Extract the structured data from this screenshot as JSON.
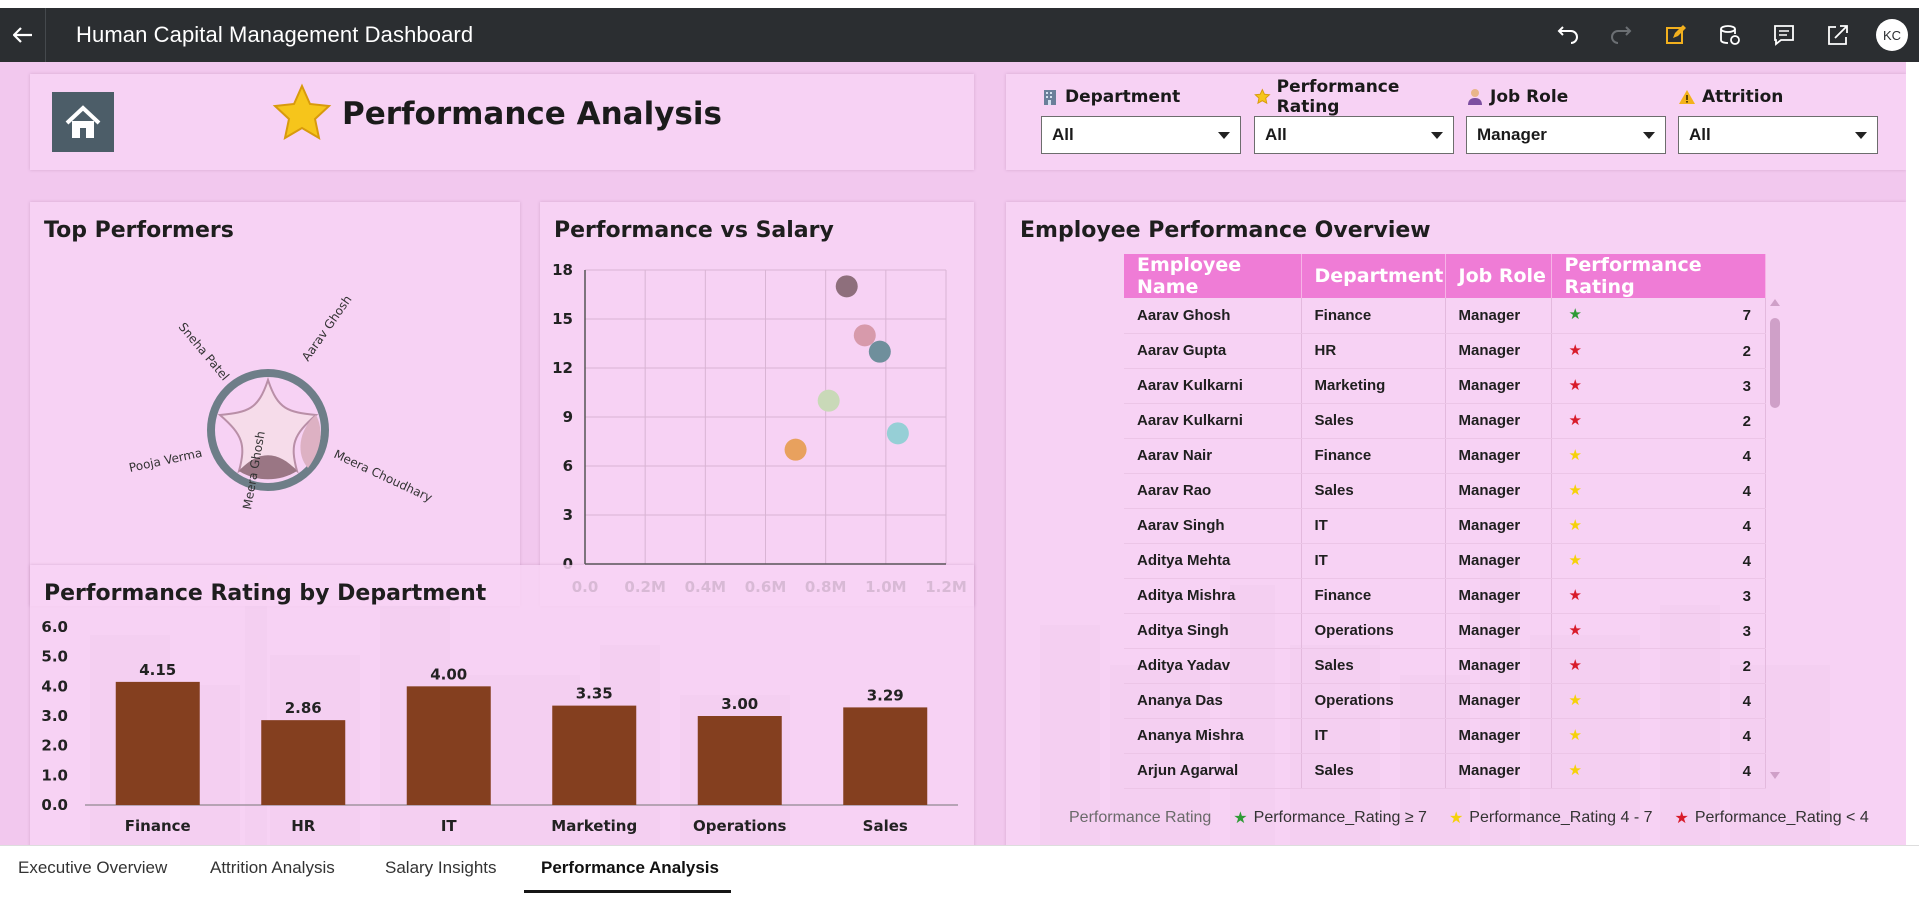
{
  "app": {
    "title": "Human Capital Management Dashboard",
    "user_initials": "KC",
    "toolbar_icons": [
      "undo-icon",
      "redo-icon",
      "edit-icon",
      "data-icon",
      "comment-icon",
      "share-icon"
    ]
  },
  "header": {
    "page_title": "Performance Analysis"
  },
  "filters": [
    {
      "label": "Department",
      "value": "All",
      "icon": "building-icon"
    },
    {
      "label": "Performance Rating",
      "value": "All",
      "icon": "star-icon"
    },
    {
      "label": "Job Role",
      "value": "Manager",
      "icon": "person-icon"
    },
    {
      "label": "Attrition",
      "value": "All",
      "icon": "warning-icon"
    }
  ],
  "top_performers": {
    "title": "Top Performers",
    "names": [
      "Aarav Ghosh",
      "Meera Choudhary",
      "Meera Ghosh",
      "Pooja Verma",
      "Sneha Patel"
    ]
  },
  "perf_vs_salary": {
    "title": "Performance vs Salary",
    "chart_data": {
      "type": "scatter",
      "title": "Performance vs Salary",
      "xlim": [
        0,
        1200000
      ],
      "ylim": [
        0,
        18
      ],
      "x_ticks": [
        "0.0",
        "0.2M",
        "0.4M",
        "0.6M",
        "0.8M",
        "1.0M",
        "1.2M"
      ],
      "y_ticks": [
        "0",
        "3",
        "6",
        "9",
        "12",
        "15",
        "18"
      ],
      "points": [
        {
          "x": 700000,
          "y": 7,
          "color": "#e8a15e"
        },
        {
          "x": 810000,
          "y": 10,
          "color": "#c9d9b8"
        },
        {
          "x": 870000,
          "y": 17,
          "color": "#8e6f7c"
        },
        {
          "x": 930000,
          "y": 14,
          "color": "#d79aab"
        },
        {
          "x": 980000,
          "y": 13,
          "color": "#6f8f9c"
        },
        {
          "x": 1040000,
          "y": 8,
          "color": "#96cfd6"
        }
      ]
    }
  },
  "dept_rating": {
    "title": "Performance Rating by Department",
    "chart_data": {
      "type": "bar",
      "title": "Performance Rating by Department",
      "categories": [
        "Finance",
        "HR",
        "IT",
        "Marketing",
        "Operations",
        "Sales"
      ],
      "values": [
        4.15,
        2.86,
        4.0,
        3.35,
        3.0,
        3.29
      ],
      "labels": [
        "4.15",
        "2.86",
        "4.00",
        "3.35",
        "3.00",
        "3.29"
      ],
      "ylim": [
        0,
        6
      ],
      "y_ticks": [
        "0.0",
        "1.0",
        "2.0",
        "3.0",
        "4.0",
        "5.0",
        "6.0"
      ],
      "color": "#843f1f"
    }
  },
  "overview": {
    "title": "Employee Performance Overview",
    "columns": [
      "Employee Name",
      "Department",
      "Job Role",
      "Performance Rating"
    ],
    "star_colors": {
      "green": "#2e9a35",
      "yellow": "#f5d10a",
      "red": "#d81b2a"
    },
    "rows": [
      {
        "name": "Aarav Ghosh",
        "dept": "Finance",
        "role": "Manager",
        "rating": "7",
        "star": "green"
      },
      {
        "name": "Aarav Gupta",
        "dept": "HR",
        "role": "Manager",
        "rating": "2",
        "star": "red"
      },
      {
        "name": "Aarav Kulkarni",
        "dept": "Marketing",
        "role": "Manager",
        "rating": "3",
        "star": "red"
      },
      {
        "name": "Aarav Kulkarni",
        "dept": "Sales",
        "role": "Manager",
        "rating": "2",
        "star": "red"
      },
      {
        "name": "Aarav Nair",
        "dept": "Finance",
        "role": "Manager",
        "rating": "4",
        "star": "yellow"
      },
      {
        "name": "Aarav Rao",
        "dept": "Sales",
        "role": "Manager",
        "rating": "4",
        "star": "yellow"
      },
      {
        "name": "Aarav Singh",
        "dept": "IT",
        "role": "Manager",
        "rating": "4",
        "star": "yellow"
      },
      {
        "name": "Aditya Mehta",
        "dept": "IT",
        "role": "Manager",
        "rating": "4",
        "star": "yellow"
      },
      {
        "name": "Aditya Mishra",
        "dept": "Finance",
        "role": "Manager",
        "rating": "3",
        "star": "red"
      },
      {
        "name": "Aditya Singh",
        "dept": "Operations",
        "role": "Manager",
        "rating": "3",
        "star": "red"
      },
      {
        "name": "Aditya Yadav",
        "dept": "Sales",
        "role": "Manager",
        "rating": "2",
        "star": "red"
      },
      {
        "name": "Ananya Das",
        "dept": "Operations",
        "role": "Manager",
        "rating": "4",
        "star": "yellow"
      },
      {
        "name": "Ananya Mishra",
        "dept": "IT",
        "role": "Manager",
        "rating": "4",
        "star": "yellow"
      },
      {
        "name": "Arjun Agarwal",
        "dept": "Sales",
        "role": "Manager",
        "rating": "4",
        "star": "yellow"
      }
    ],
    "legend": {
      "title": "Performance Rating",
      "items": [
        "Performance_Rating ≥ 7",
        "Performance_Rating 4 - 7",
        "Performance_Rating < 4"
      ]
    }
  },
  "tabs": [
    "Executive Overview",
    "Attrition Analysis",
    "Salary Insights",
    "Performance Analysis"
  ],
  "active_tab": "Performance Analysis"
}
